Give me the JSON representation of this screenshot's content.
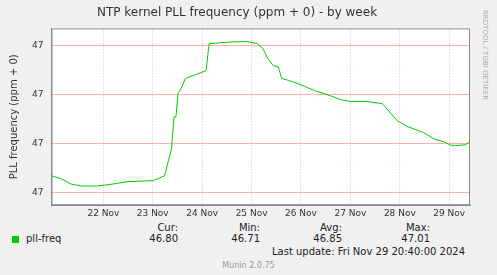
{
  "chart_data": {
    "type": "line",
    "title": "NTP kernel PLL frequency (ppm + 0) - by week",
    "y_label": "PLL frequency (ppm + 0)",
    "side_text": "RRDTOOL / TOBI OETIKER",
    "grid": true,
    "xlim": [
      20.95,
      29.42
    ],
    "xticks": [
      {
        "value": 22,
        "label": "22 Nov"
      },
      {
        "value": 23,
        "label": "23 Nov"
      },
      {
        "value": 24,
        "label": "24 Nov"
      },
      {
        "value": 25,
        "label": "25 Nov"
      },
      {
        "value": 26,
        "label": "26 Nov"
      },
      {
        "value": 27,
        "label": "27 Nov"
      },
      {
        "value": 28,
        "label": "28 Nov"
      },
      {
        "value": 29,
        "label": "29 Nov"
      }
    ],
    "ylim": [
      46.675,
      47.035
    ],
    "yticks": [
      {
        "value": 46.7,
        "label": "47"
      },
      {
        "value": 46.8,
        "label": "47"
      },
      {
        "value": 46.9,
        "label": "47"
      },
      {
        "value": 47.0,
        "label": "47"
      }
    ],
    "x": [
      20.95,
      21.14,
      21.35,
      21.56,
      21.87,
      22.19,
      22.5,
      23.01,
      23.24,
      23.3,
      23.38,
      23.43,
      23.47,
      23.51,
      23.59,
      23.66,
      23.87,
      24.08,
      24.14,
      24.39,
      24.7,
      24.91,
      25.12,
      25.23,
      25.33,
      25.44,
      25.54,
      25.61,
      25.75,
      25.96,
      26.28,
      26.59,
      26.8,
      27.01,
      27.32,
      27.64,
      27.74,
      27.95,
      28.16,
      28.48,
      28.69,
      28.9,
      29.0,
      29.11,
      29.32,
      29.42
    ],
    "series": [
      {
        "name": "pll-freq",
        "color": "#00cc00",
        "values": [
          46.735,
          46.729,
          46.718,
          46.714,
          46.714,
          46.718,
          46.723,
          46.725,
          46.735,
          46.759,
          46.79,
          46.855,
          46.855,
          46.902,
          46.916,
          46.933,
          46.941,
          46.949,
          47.004,
          47.006,
          47.008,
          47.008,
          47.004,
          46.994,
          46.973,
          46.959,
          46.957,
          46.933,
          46.929,
          46.922,
          46.908,
          46.898,
          46.89,
          46.886,
          46.886,
          46.882,
          46.871,
          46.847,
          46.835,
          46.823,
          46.81,
          46.804,
          46.798,
          46.796,
          46.798,
          46.804
        ]
      }
    ],
    "stats": [
      {
        "label": "Cur:",
        "value": 46.8,
        "value_label": "46.80"
      },
      {
        "label": "Min:",
        "value": 46.71,
        "value_label": "46.71"
      },
      {
        "label": "Avg:",
        "value": 46.85,
        "value_label": "46.85"
      },
      {
        "label": "Max:",
        "value": 47.01,
        "value_label": "47.01"
      }
    ],
    "last_update": "Last update: Fri Nov 29 20:40:00 2024",
    "generator": "Munin 2.0.75"
  }
}
